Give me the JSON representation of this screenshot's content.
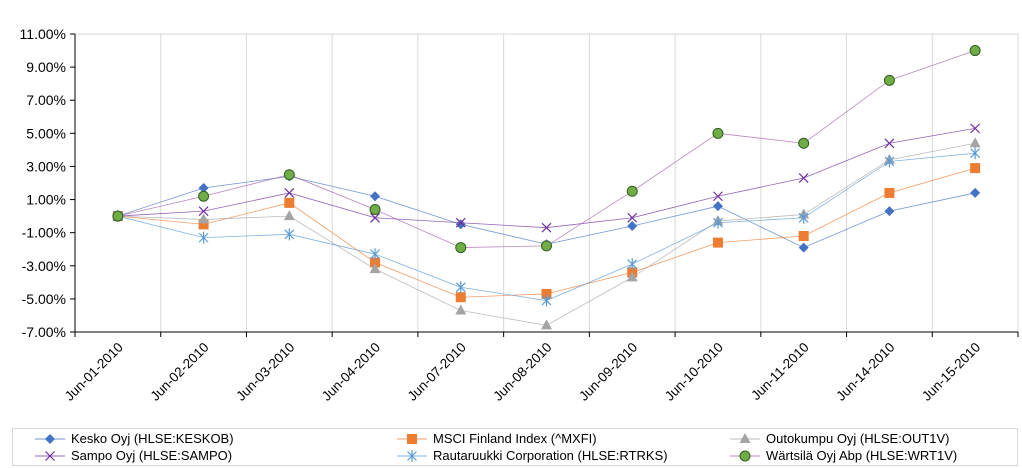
{
  "chart_data": {
    "type": "line",
    "title": "",
    "xlabel": "",
    "ylabel": "",
    "categories": [
      "Jun-01-2010",
      "Jun-02-2010",
      "Jun-03-2010",
      "Jun-04-2010",
      "Jun-07-2010",
      "Jun-08-2010",
      "Jun-09-2010",
      "Jun-10-2010",
      "Jun-11-2010",
      "Jun-14-2010",
      "Jun-15-2010"
    ],
    "ylim": [
      -7,
      11
    ],
    "yticks": [
      -7,
      -5,
      -3,
      -1,
      1,
      3,
      5,
      7,
      9,
      11
    ],
    "ytick_labels": [
      "-7.00%",
      "-5.00%",
      "-3.00%",
      "-1.00%",
      "1.00%",
      "3.00%",
      "5.00%",
      "7.00%",
      "9.00%",
      "11.00%"
    ],
    "grid": "vertical",
    "legend_position": "bottom",
    "series": [
      {
        "name": "Kesko Oyj (HLSE:KESKOB)",
        "color": "#4472c4",
        "marker": "diamond",
        "values": [
          0,
          1.7,
          2.4,
          1.2,
          -0.5,
          -1.7,
          -0.6,
          0.6,
          -1.9,
          0.3,
          1.4
        ]
      },
      {
        "name": "MSCI Finland Index (^MXFI)",
        "color": "#ed7d31",
        "marker": "square",
        "values": [
          0,
          -0.5,
          0.8,
          -2.8,
          -4.9,
          -4.7,
          -3.4,
          -1.6,
          -1.2,
          1.4,
          2.9
        ]
      },
      {
        "name": "Outokumpu Oyj (HLSE:OUT1V)",
        "color": "#a5a5a5",
        "marker": "triangle",
        "values": [
          0,
          -0.2,
          0.0,
          -3.2,
          -5.7,
          -6.6,
          -3.7,
          -0.3,
          0.1,
          3.4,
          4.4
        ]
      },
      {
        "name": "Sampo Oyj (HLSE:SAMPO)",
        "color": "#7030a0",
        "marker": "x",
        "values": [
          0,
          0.3,
          1.4,
          -0.1,
          -0.4,
          -0.7,
          -0.1,
          1.2,
          2.3,
          4.4,
          5.3
        ]
      },
      {
        "name": "Rautaruukki Corporation (HLSE:RTRKS)",
        "color": "#5b9bd5",
        "marker": "star",
        "values": [
          0,
          -1.3,
          -1.1,
          -2.3,
          -4.3,
          -5.1,
          -2.9,
          -0.4,
          -0.1,
          3.3,
          3.8
        ]
      },
      {
        "name": "Wärtsilä Oyj Abp (HLSE:WRT1V)",
        "color": "#70ad47",
        "marker": "circle",
        "line_color": "#a05fa8",
        "values": [
          0,
          1.2,
          2.5,
          0.4,
          -1.9,
          -1.8,
          1.5,
          5.0,
          4.4,
          8.2,
          10.0
        ]
      }
    ]
  }
}
